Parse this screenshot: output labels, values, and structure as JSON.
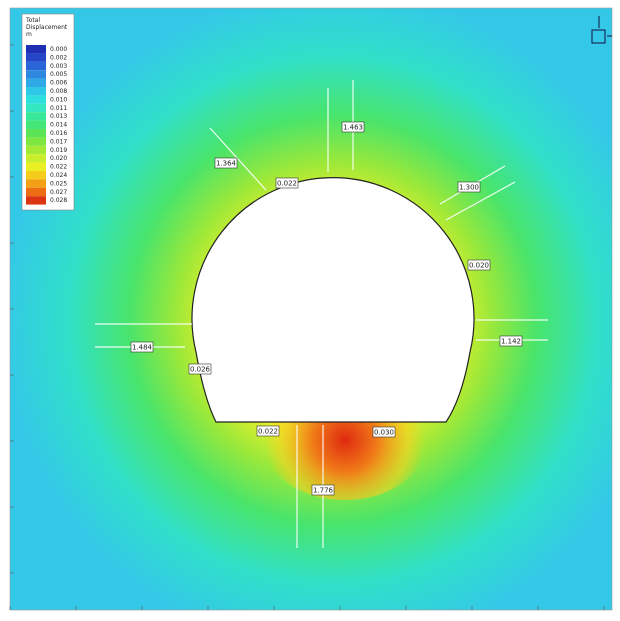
{
  "legend": {
    "title": [
      "Total",
      "Displacement",
      "m"
    ],
    "items": [
      {
        "label": "0.000",
        "color": "#1f2fb4"
      },
      {
        "label": "0.002",
        "color": "#2446c8"
      },
      {
        "label": "0.003",
        "color": "#2a66d8"
      },
      {
        "label": "0.005",
        "color": "#2e88e0"
      },
      {
        "label": "0.006",
        "color": "#2fa8e6"
      },
      {
        "label": "0.008",
        "color": "#2ec8e8"
      },
      {
        "label": "0.010",
        "color": "#2fe0e0"
      },
      {
        "label": "0.011",
        "color": "#33e8c0"
      },
      {
        "label": "0.013",
        "color": "#3ae89a"
      },
      {
        "label": "0.014",
        "color": "#44e678"
      },
      {
        "label": "0.016",
        "color": "#5ae456"
      },
      {
        "label": "0.017",
        "color": "#7ee640"
      },
      {
        "label": "0.019",
        "color": "#a4ea34"
      },
      {
        "label": "0.020",
        "color": "#c8ee2c"
      },
      {
        "label": "0.022",
        "color": "#eaf024"
      },
      {
        "label": "0.024",
        "color": "#f6cc1c"
      },
      {
        "label": "0.025",
        "color": "#f4a016"
      },
      {
        "label": "0.027",
        "color": "#ee6c12"
      },
      {
        "label": "0.028",
        "color": "#dc3410"
      }
    ]
  },
  "annotations": [
    {
      "label": "1.463"
    },
    {
      "label": "1.364"
    },
    {
      "label": "0.022"
    },
    {
      "label": "1.300"
    },
    {
      "label": "0.020"
    },
    {
      "label": "1.484"
    },
    {
      "label": "1.142"
    },
    {
      "label": "0.026"
    },
    {
      "label": "0.022"
    },
    {
      "label": "0.030"
    },
    {
      "label": "1.776"
    }
  ]
}
